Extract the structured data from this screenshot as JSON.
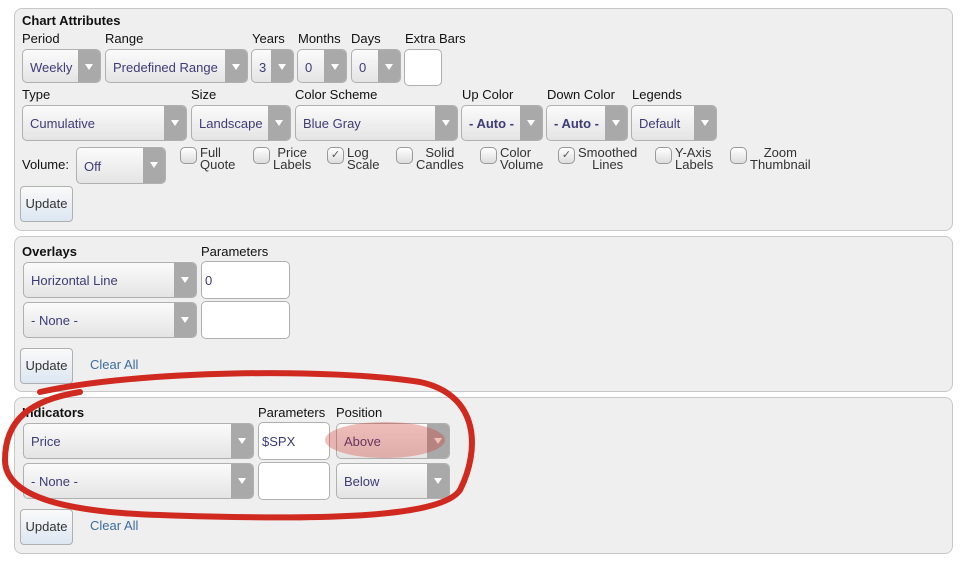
{
  "chart_attributes": {
    "title": "Chart Attributes",
    "period": {
      "label": "Period",
      "value": "Weekly"
    },
    "range": {
      "label": "Range",
      "value": "Predefined Range"
    },
    "years": {
      "label": "Years",
      "value": "3"
    },
    "months": {
      "label": "Months",
      "value": "0"
    },
    "days": {
      "label": "Days",
      "value": "0"
    },
    "extra_bars": {
      "label": "Extra Bars",
      "value": ""
    },
    "type": {
      "label": "Type",
      "value": "Cumulative"
    },
    "size": {
      "label": "Size",
      "value": "Landscape"
    },
    "color_scheme": {
      "label": "Color Scheme",
      "value": "Blue Gray"
    },
    "up_color": {
      "label": "Up Color",
      "value": "- Auto -"
    },
    "down_color": {
      "label": "Down Color",
      "value": "- Auto -"
    },
    "legends": {
      "label": "Legends",
      "value": "Default"
    },
    "volume": {
      "label": "Volume:",
      "value": "Off"
    },
    "checkboxes": [
      {
        "l1": "Full",
        "l2": "Quote",
        "checked": false
      },
      {
        "l1": "Price",
        "l2": "Labels",
        "checked": false
      },
      {
        "l1": "Log",
        "l2": "Scale",
        "checked": true
      },
      {
        "l1": "Solid",
        "l2": "Candles",
        "checked": false
      },
      {
        "l1": "Color",
        "l2": "Volume",
        "checked": false
      },
      {
        "l1": "Smoothed",
        "l2": "Lines",
        "checked": true
      },
      {
        "l1": "Y-Axis",
        "l2": "Labels",
        "checked": false
      },
      {
        "l1": "Zoom",
        "l2": "Thumbnail",
        "checked": false
      }
    ],
    "update": "Update"
  },
  "overlays": {
    "title": "Overlays",
    "params_label": "Parameters",
    "rows": [
      {
        "value": "Horizontal Line",
        "param": "0"
      },
      {
        "value": "- None -",
        "param": ""
      }
    ],
    "update": "Update",
    "clear": "Clear All"
  },
  "indicators": {
    "title": "Indicators",
    "params_label": "Parameters",
    "position_label": "Position",
    "rows": [
      {
        "value": "Price",
        "param": "$SPX",
        "position": "Above"
      },
      {
        "value": "- None -",
        "param": "",
        "position": "Below"
      }
    ],
    "update": "Update",
    "clear": "Clear All"
  },
  "annotation_color": "#d02a20"
}
